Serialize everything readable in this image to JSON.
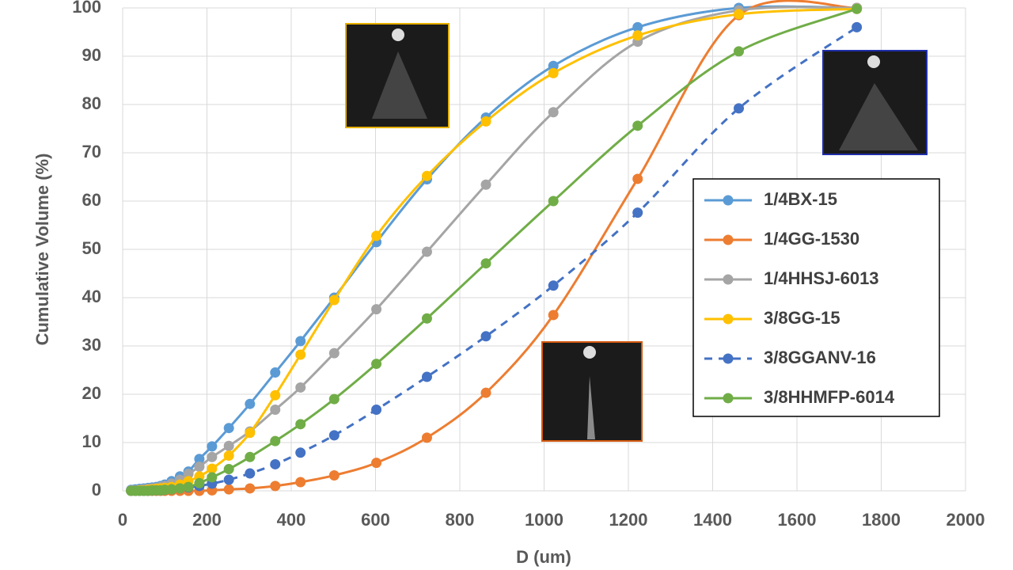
{
  "chart_data": {
    "type": "line",
    "x_label": "D (um)",
    "y_label": "Cumulative Volume (%)",
    "x": [
      20,
      30,
      40,
      50,
      60,
      70,
      80,
      90,
      100,
      116,
      136,
      156,
      182,
      212,
      252,
      302,
      362,
      422,
      502,
      602,
      722,
      862,
      1022,
      1222,
      1462,
      1742
    ],
    "series": [
      {
        "name": "1/4BX-15",
        "color": "#5b9bd5",
        "dash": false,
        "values": [
          0.2,
          0.3,
          0.4,
          0.5,
          0.6,
          0.7,
          0.8,
          1,
          1.3,
          2,
          3,
          4,
          6.6,
          9.2,
          13,
          18,
          24.5,
          31,
          40,
          51.5,
          64.5,
          77.3,
          88,
          96,
          100,
          100
        ]
      },
      {
        "name": "1/4GG-1530",
        "color": "#ed7d31",
        "dash": false,
        "values": [
          0,
          0,
          0,
          0,
          0,
          0,
          0,
          0,
          0,
          0,
          0,
          0,
          0,
          0.1,
          0.3,
          0.5,
          1,
          1.8,
          3.2,
          5.8,
          11,
          20.3,
          36.4,
          64.6,
          98.5,
          100
        ]
      },
      {
        "name": "1/4HHSJ-6013",
        "color": "#a5a5a5",
        "dash": false,
        "values": [
          0.1,
          0.1,
          0.2,
          0.3,
          0.4,
          0.5,
          0.6,
          0.8,
          1,
          1.5,
          2.3,
          3.5,
          5,
          7,
          9.3,
          12.3,
          16.8,
          21.4,
          28.5,
          37.6,
          49.5,
          63.4,
          78.4,
          93,
          99.5,
          100
        ]
      },
      {
        "name": "3/8GG-15",
        "color": "#ffc000",
        "dash": false,
        "values": [
          0,
          0,
          0.1,
          0.1,
          0.2,
          0.3,
          0.4,
          0.5,
          0.6,
          0.8,
          1.3,
          2,
          3,
          4.6,
          7.3,
          12,
          19.8,
          28.2,
          39.5,
          52.8,
          65.2,
          76.5,
          86.5,
          94.3,
          98.7,
          99.8
        ]
      },
      {
        "name": "3/8GGANV-16",
        "color": "#4472c4",
        "dash": true,
        "values": [
          0,
          0,
          0,
          0,
          0,
          0.1,
          0.1,
          0.1,
          0.2,
          0.3,
          0.5,
          0.7,
          1,
          1.5,
          2.3,
          3.6,
          5.5,
          7.9,
          11.5,
          16.8,
          23.6,
          32,
          42.5,
          57.6,
          79.2,
          96
        ]
      },
      {
        "name": "3/8HHMFP-6014",
        "color": "#70ad47",
        "dash": false,
        "values": [
          0,
          0,
          0,
          0,
          0,
          0.1,
          0.1,
          0.1,
          0.2,
          0.3,
          0.5,
          0.8,
          1.6,
          2.8,
          4.5,
          7,
          10.3,
          13.8,
          19,
          26.3,
          35.7,
          47.1,
          60,
          75.6,
          91,
          99.8
        ]
      }
    ],
    "xlim": [
      0,
      2000
    ],
    "xticks": [
      0,
      200,
      400,
      600,
      800,
      1000,
      1200,
      1400,
      1600,
      1800,
      2000
    ],
    "ylim": [
      0,
      100
    ],
    "yticks": [
      0,
      10,
      20,
      30,
      40,
      50,
      60,
      70,
      80,
      90,
      100
    ],
    "grid": true,
    "legend": "right"
  }
}
